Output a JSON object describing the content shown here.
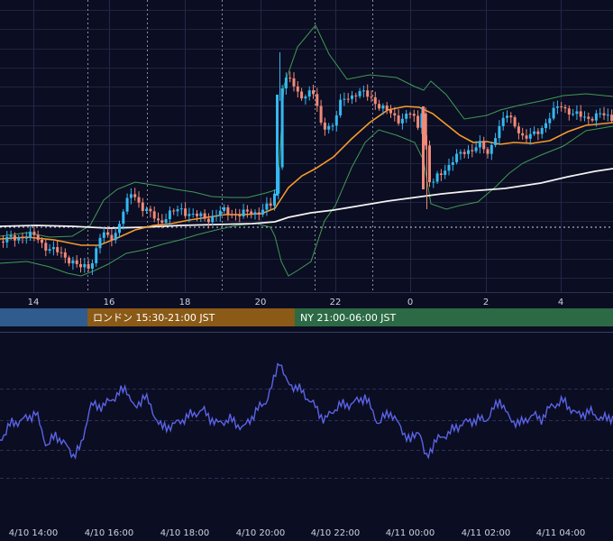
{
  "chart_data": [
    {
      "type": "candlestick",
      "x_axis_ticks": [
        "14",
        "16",
        "18",
        "20",
        "22",
        "0",
        "2",
        "4"
      ],
      "overlays": [
        {
          "name": "",
          "color": "#f59a2c",
          "kind": "moving-average"
        },
        {
          "name": "",
          "color": "#f2f2f2",
          "kind": "moving-average"
        },
        {
          "name": "",
          "color": "#3f9a55",
          "kind": "bollinger-bands"
        }
      ],
      "up_color": "#35b8f0",
      "down_color": "#f08a78",
      "grid": true
    },
    {
      "type": "session-bar",
      "sessions": [
        {
          "label": "",
          "color": "#2f5b8f"
        },
        {
          "label": "ロンドン 15:30-21:00 JST",
          "color": "#8a5a16"
        },
        {
          "label": "NY 21:00-06:00 JST",
          "color": "#2c6a45"
        }
      ]
    },
    {
      "type": "line",
      "series_color": "#5a63e6",
      "x_axis_ticks": [
        "4/10 14:00",
        "4/10 16:00",
        "4/10 18:00",
        "4/10 20:00",
        "4/10 22:00",
        "4/11 00:00",
        "4/11 02:00",
        "4/11 04:00"
      ],
      "grid": true
    }
  ]
}
